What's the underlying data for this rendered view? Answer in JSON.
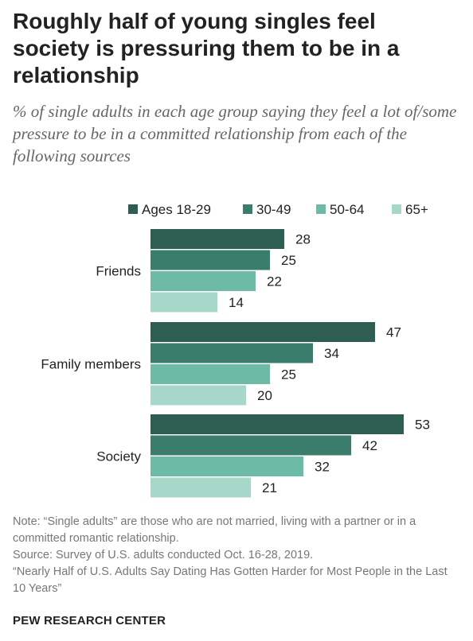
{
  "title": "Roughly half of young singles feel society is pressuring them to be in a relationship",
  "subtitle": "% of single adults in each age group saying they feel a lot of/some pressure to be in a committed relationship from each of the following sources",
  "notes": {
    "note": "Note: “Single adults” are those who are not married, living with a partner or in a committed romantic relationship.",
    "source": "Source: Survey of U.S. adults conducted Oct. 16-28, 2019.",
    "report": "“Nearly Half of U.S. Adults Say Dating Has Gotten Harder for Most People in the Last 10 Years”"
  },
  "brand": "PEW RESEARCH CENTER",
  "chart_data": {
    "type": "bar",
    "orientation": "horizontal",
    "categories": [
      "Friends",
      "Family members",
      "Society"
    ],
    "series": [
      {
        "name": "Ages 18-29",
        "color": "#2e5e52",
        "values": [
          28,
          47,
          53
        ]
      },
      {
        "name": "30-49",
        "color": "#3a7d6c",
        "values": [
          25,
          34,
          42
        ]
      },
      {
        "name": "50-64",
        "color": "#6dbba7",
        "values": [
          22,
          25,
          32
        ]
      },
      {
        "name": "65+",
        "color": "#a7d7c8",
        "values": [
          14,
          20,
          21
        ]
      }
    ],
    "xlim": [
      0,
      60
    ],
    "legend_position": "top",
    "grid": false,
    "data_labels": true
  }
}
